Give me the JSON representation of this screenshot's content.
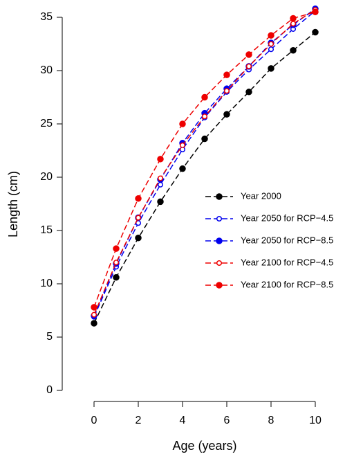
{
  "chart_data": {
    "type": "line",
    "x_label": "Age (years)",
    "y_label": "Length (cm)",
    "x": [
      0,
      1,
      2,
      3,
      4,
      5,
      6,
      7,
      8,
      9,
      10
    ],
    "xlim": [
      0,
      10
    ],
    "xticks": [
      0,
      2,
      4,
      6,
      8,
      10
    ],
    "ylim": [
      0,
      35
    ],
    "yticks": [
      0,
      5,
      10,
      15,
      20,
      25,
      30,
      35
    ],
    "legend_position": "right",
    "series": [
      {
        "name": "Year 2000",
        "color": "#000000",
        "marker": "filled",
        "values": [
          6.3,
          10.6,
          14.3,
          17.7,
          20.8,
          23.6,
          25.9,
          28.0,
          30.2,
          31.9,
          33.6
        ]
      },
      {
        "name": "Year 2050 for RCP−4.5",
        "color": "#0000ee",
        "marker": "open",
        "values": [
          6.9,
          11.6,
          15.7,
          19.3,
          22.6,
          25.6,
          28.0,
          30.1,
          32.0,
          33.9,
          35.6
        ]
      },
      {
        "name": "Year 2050 for RCP−8.5",
        "color": "#0000ee",
        "marker": "filled",
        "values": [
          7.0,
          11.9,
          16.2,
          19.8,
          23.2,
          26.0,
          28.3,
          30.4,
          32.6,
          34.3,
          35.8
        ]
      },
      {
        "name": "Year 2100 for RCP−4.5",
        "color": "#ee0000",
        "marker": "open",
        "values": [
          7.1,
          12.0,
          16.2,
          19.9,
          23.0,
          25.7,
          28.1,
          30.4,
          32.5,
          34.4,
          35.7
        ]
      },
      {
        "name": "Year 2100 for RCP−8.5",
        "color": "#ee0000",
        "marker": "filled",
        "values": [
          7.8,
          13.3,
          18.0,
          21.7,
          25.0,
          27.5,
          29.6,
          31.5,
          33.3,
          34.9,
          35.5
        ]
      }
    ]
  }
}
